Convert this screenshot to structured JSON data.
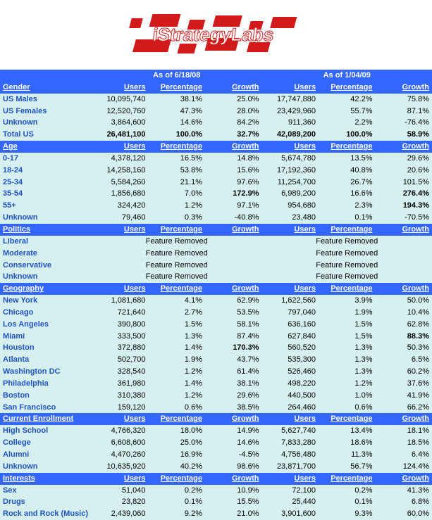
{
  "logo_text": "iStrategyLabs",
  "colors": {
    "header_bg": "#3366ff",
    "row_bg": "#d6f0f0",
    "label_color": "#2052c0",
    "logo_red": "#d11a1a"
  },
  "date_headers": {
    "left": "As of 6/18/08",
    "right": "As of 1/04/09"
  },
  "col_headers": [
    "Users",
    "Percentage",
    "Growth",
    "Users",
    "Percentage",
    "Growth"
  ],
  "sections": [
    {
      "name": "Gender",
      "rows": [
        {
          "label": "US Males",
          "v": [
            "10,095,740",
            "38.1%",
            "25.0%",
            "17,747,880",
            "42.2%",
            "75.8%"
          ]
        },
        {
          "label": "US Females",
          "v": [
            "12,520,760",
            "47.3%",
            "28.0%",
            "23,429,960",
            "55.7%",
            "87.1%"
          ]
        },
        {
          "label": "Unknown",
          "v": [
            "3,864,600",
            "14.6%",
            "84.2%",
            "911,360",
            "2.2%",
            "-76.4%"
          ]
        },
        {
          "label": "Total US",
          "v": [
            "26,481,100",
            "100.0%",
            "32.7%",
            "42,089,200",
            "100.0%",
            "58.9%"
          ],
          "total": true,
          "bold_idx": [
            2
          ]
        }
      ]
    },
    {
      "name": "Age",
      "rows": [
        {
          "label": "0-17",
          "v": [
            "4,378,120",
            "16.5%",
            "14.8%",
            "5,674,780",
            "13.5%",
            "29.6%"
          ]
        },
        {
          "label": "18-24",
          "v": [
            "14,258,160",
            "53.8%",
            "15.6%",
            "17,192,360",
            "40.8%",
            "20.6%"
          ]
        },
        {
          "label": "25-34",
          "v": [
            "5,584,260",
            "21.1%",
            "97.6%",
            "11,254,700",
            "26.7%",
            "101.5%"
          ]
        },
        {
          "label": "35-54",
          "v": [
            "1,856,680",
            "7.0%",
            "172.9%",
            "6,989,200",
            "16.6%",
            "276.4%"
          ],
          "bold_idx": [
            2,
            5
          ]
        },
        {
          "label": "55+",
          "v": [
            "324,420",
            "1.2%",
            "97.1%",
            "954,680",
            "2.3%",
            "194.3%"
          ],
          "bold_idx": [
            5
          ]
        },
        {
          "label": "Unknown",
          "v": [
            "79,460",
            "0.3%",
            "-40.8%",
            "23,480",
            "0.1%",
            "-70.5%"
          ]
        }
      ]
    },
    {
      "name": "Politics",
      "feature_removed": true,
      "feat_text": "Feature Removed",
      "rows": [
        {
          "label": "Liberal"
        },
        {
          "label": "Moderate"
        },
        {
          "label": "Conservative"
        },
        {
          "label": "Unknown"
        }
      ]
    },
    {
      "name": "Geography",
      "rows": [
        {
          "label": "New York",
          "v": [
            "1,081,680",
            "4.1%",
            "62.9%",
            "1,622,560",
            "3.9%",
            "50.0%"
          ]
        },
        {
          "label": "Chicago",
          "v": [
            "721,640",
            "2.7%",
            "53.5%",
            "797,040",
            "1.9%",
            "10.4%"
          ]
        },
        {
          "label": "Los Angeles",
          "v": [
            "390,800",
            "1.5%",
            "58.1%",
            "636,160",
            "1.5%",
            "62.8%"
          ]
        },
        {
          "label": "Miami",
          "v": [
            "333,500",
            "1.3%",
            "87.4%",
            "627,840",
            "1.5%",
            "88.3%"
          ],
          "bold_idx": [
            5
          ]
        },
        {
          "label": "Houston",
          "v": [
            "372,880",
            "1.4%",
            "170.3%",
            "560,520",
            "1.3%",
            "50.3%"
          ],
          "bold_idx": [
            2
          ]
        },
        {
          "label": "Atlanta",
          "v": [
            "502,700",
            "1.9%",
            "43.7%",
            "535,300",
            "1.3%",
            "6.5%"
          ]
        },
        {
          "label": "Washington DC",
          "v": [
            "328,540",
            "1.2%",
            "61.4%",
            "526,460",
            "1.3%",
            "60.2%"
          ]
        },
        {
          "label": "Philadelphia",
          "v": [
            "361,980",
            "1.4%",
            "38.1%",
            "498,220",
            "1.2%",
            "37.6%"
          ]
        },
        {
          "label": "Boston",
          "v": [
            "310,380",
            "1.2%",
            "29.6%",
            "440,500",
            "1.0%",
            "41.9%"
          ]
        },
        {
          "label": "San Francisco",
          "v": [
            "159,120",
            "0.6%",
            "38.5%",
            "264,460",
            "0.6%",
            "66.2%"
          ]
        }
      ]
    },
    {
      "name": "Current Enrollment",
      "rows": [
        {
          "label": "High School",
          "v": [
            "4,766,320",
            "18.0%",
            "14.9%",
            "5,627,740",
            "13.4%",
            "18.1%"
          ]
        },
        {
          "label": "College",
          "v": [
            "6,608,600",
            "25.0%",
            "14.6%",
            "7,833,280",
            "18.6%",
            "18.5%"
          ]
        },
        {
          "label": "Alumni",
          "v": [
            "4,470,260",
            "16.9%",
            "-4.5%",
            "4,756,480",
            "11.3%",
            "6.4%"
          ]
        },
        {
          "label": "Unknown",
          "v": [
            "10,635,920",
            "40.2%",
            "98.6%",
            "23,871,700",
            "56.7%",
            "124.4%"
          ]
        }
      ]
    },
    {
      "name": "Interests",
      "rows": [
        {
          "label": "Sex",
          "v": [
            "51,040",
            "0.2%",
            "10.9%",
            "72,100",
            "0.2%",
            "41.3%"
          ]
        },
        {
          "label": "Drugs",
          "v": [
            "23,820",
            "0.1%",
            "15.5%",
            "25,440",
            "0.1%",
            "6.8%"
          ]
        },
        {
          "label": "Rock and Rock (Music)",
          "v": [
            "2,439,060",
            "9.2%",
            "21.0%",
            "3,901,600",
            "9.3%",
            "60.0%"
          ]
        }
      ]
    }
  ]
}
